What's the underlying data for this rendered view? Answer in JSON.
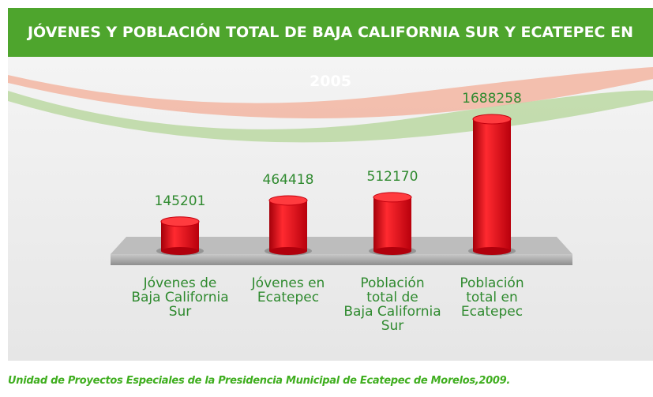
{
  "chart_data": {
    "type": "bar",
    "title": "JÓVENES Y POBLACIÓN TOTAL DE BAJA CALIFORNIA SUR Y ECATEPEC EN 2005",
    "categories": [
      "Jóvenes  de\nBaja California\nSur",
      "Jóvenes en\nEcatepec",
      "Población\ntotal de\nBaja California\nSur",
      "Población\ntotal en\nEcatepec"
    ],
    "values": [
      145201,
      464418,
      512170,
      1688258
    ],
    "color": "#e0101a",
    "source": "Unidad de Proyectos Especiales de la Presidencia Municipal de Ecatepec de Morelos,2009."
  }
}
